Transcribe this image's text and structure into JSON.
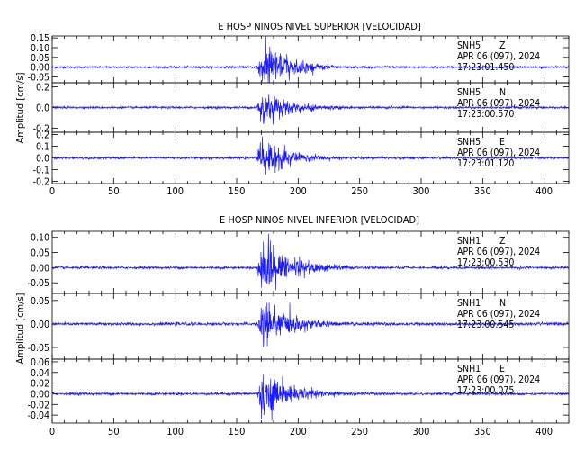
{
  "trace_color": "#1a1aff",
  "chart_data": [
    {
      "type": "line",
      "title": "E HOSP NINOS NIVEL SUPERIOR [VELOCIDAD]",
      "ylabel": "Amplitud [cm/s]",
      "xlabel": "",
      "xlim": [
        0,
        420
      ],
      "x_ticks": [
        "0",
        "50",
        "100",
        "150",
        "200",
        "250",
        "300",
        "350",
        "400"
      ],
      "grid": false,
      "event": {
        "onset": 166,
        "peak_time": 170.5,
        "decay": 22
      },
      "panels": [
        {
          "station": "SNH5",
          "component": "Z",
          "date": "APR 06 (097), 2024",
          "time": "17:23:01.450",
          "ylim": [
            -0.08,
            0.16
          ],
          "ticks": [
            0.15,
            0.1,
            0.05,
            0.0,
            -0.05
          ],
          "tick_labels": [
            "0.15",
            "0.10",
            "0.05",
            "0.00",
            "-0.05"
          ],
          "noise": 0.0025,
          "event_amp": 0.15
        },
        {
          "station": "SNH5",
          "component": "N",
          "date": "APR 06 (097), 2024",
          "time": "17:23:00.570",
          "ylim": [
            -0.24,
            0.24
          ],
          "ticks": [
            0.2,
            0.0,
            -0.2
          ],
          "tick_labels": [
            "0.2",
            "0.0",
            "-0.2"
          ],
          "noise": 0.005,
          "event_amp": 0.22
        },
        {
          "station": "SNH5",
          "component": "E",
          "date": "APR 06 (097), 2024",
          "time": "17:23:01.120",
          "ylim": [
            -0.22,
            0.22
          ],
          "ticks": [
            0.2,
            0.1,
            0.0,
            -0.1,
            -0.2
          ],
          "tick_labels": [
            "0.2",
            "0.1",
            "0.0",
            "-0.1",
            "-0.2"
          ],
          "noise": 0.005,
          "event_amp": 0.2
        }
      ]
    },
    {
      "type": "line",
      "title": "E HOSP NINOS NIVEL INFERIOR [VELOCIDAD]",
      "ylabel": "Amplitud [cm/s]",
      "xlabel": "",
      "xlim": [
        0,
        420
      ],
      "x_ticks": [
        "0",
        "50",
        "100",
        "150",
        "200",
        "250",
        "300",
        "350",
        "400"
      ],
      "grid": false,
      "event": {
        "onset": 166,
        "peak_time": 171,
        "decay": 24
      },
      "panels": [
        {
          "station": "SNH1",
          "component": "Z",
          "date": "APR 06 (097), 2024",
          "time": "17:23:00.530",
          "ylim": [
            -0.085,
            0.12
          ],
          "ticks": [
            0.1,
            0.05,
            0.0,
            -0.05
          ],
          "tick_labels": [
            "0.10",
            "0.05",
            "0.00",
            "-0.05"
          ],
          "noise": 0.002,
          "event_amp": 0.11
        },
        {
          "station": "SNH1",
          "component": "N",
          "date": "APR 06 (097), 2024",
          "time": "17:23:00.545",
          "ylim": [
            -0.075,
            0.065
          ],
          "ticks": [
            0.05,
            0.0,
            -0.05
          ],
          "tick_labels": [
            "0.05",
            "0.00",
            "-0.05"
          ],
          "noise": 0.0015,
          "event_amp": 0.055
        },
        {
          "station": "SNH1",
          "component": "E",
          "date": "APR 06 (097), 2024",
          "time": "17:23:00.075",
          "ylim": [
            -0.055,
            0.065
          ],
          "ticks": [
            0.06,
            0.04,
            0.02,
            0.0,
            -0.02,
            -0.04
          ],
          "tick_labels": [
            "0.06",
            "0.04",
            "0.02",
            "0.00",
            "-0.02",
            "-0.04"
          ],
          "noise": 0.0012,
          "event_amp": 0.05
        }
      ]
    }
  ]
}
